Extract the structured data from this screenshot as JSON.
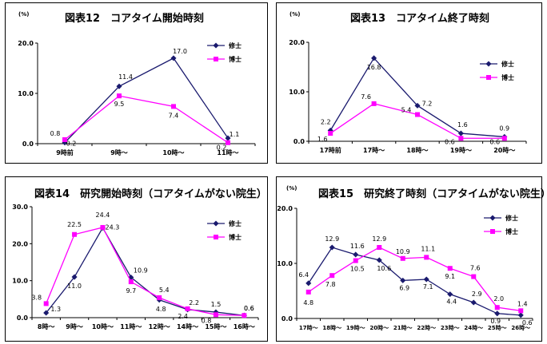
{
  "colors": {
    "m": "#1a1a6e",
    "d": "#ff00ff"
  },
  "chart_data": [
    {
      "type": "line",
      "title": "図表12　コアタイム開始時刻",
      "unit": "(%)",
      "categories": [
        "9時前",
        "9時～",
        "10時～",
        "11時～"
      ],
      "ylim": [
        0,
        20
      ],
      "yticks": [
        "0.0",
        "10.0",
        "20.0"
      ],
      "series": [
        {
          "name": "修士",
          "values": [
            0.2,
            11.4,
            17.0,
            1.1
          ]
        },
        {
          "name": "博士",
          "values": [
            0.8,
            9.5,
            7.4,
            0.2
          ]
        }
      ]
    },
    {
      "type": "line",
      "title": "図表13　コアタイム終了時刻",
      "unit": "(%)",
      "categories": [
        "17時前",
        "17時～",
        "18時～",
        "19時～",
        "20時～"
      ],
      "ylim": [
        0,
        20
      ],
      "yticks": [
        "0.0",
        "10.0",
        "20.0"
      ],
      "series": [
        {
          "name": "修士",
          "values": [
            2.2,
            16.8,
            7.2,
            1.6,
            0.9
          ]
        },
        {
          "name": "博士",
          "values": [
            1.6,
            7.6,
            5.4,
            0.6,
            0.6
          ]
        }
      ]
    },
    {
      "type": "line",
      "title": "図表14　研究開始時刻（コアタイムがない院生）",
      "unit": "",
      "categories": [
        "8時～",
        "9時～",
        "10時～",
        "11時～",
        "12時～",
        "14時～",
        "15時～",
        "16時～"
      ],
      "ylim": [
        0,
        30
      ],
      "yticks": [
        "0.0",
        "10.0",
        "20.0",
        "30.0"
      ],
      "series": [
        {
          "name": "修士",
          "values": [
            1.3,
            11.0,
            24.3,
            10.9,
            4.8,
            2.2,
            1.5,
            0.6
          ]
        },
        {
          "name": "博士",
          "values": [
            3.8,
            22.5,
            24.4,
            9.7,
            5.4,
            2.4,
            0.8,
            0.6
          ]
        }
      ]
    },
    {
      "type": "line",
      "title": "図表15　研究終了時刻（コアタイムがない院生）",
      "unit": "(%)",
      "categories": [
        "17時～",
        "18時～",
        "19時～",
        "20時～",
        "21時～",
        "22時～",
        "23時～",
        "24時～",
        "25時～",
        "26時～"
      ],
      "ylim": [
        0,
        20
      ],
      "yticks": [
        "0.0",
        "10.0",
        "20.0"
      ],
      "series": [
        {
          "name": "修士",
          "values": [
            6.4,
            12.9,
            11.6,
            10.6,
            6.9,
            7.1,
            4.4,
            2.9,
            0.9,
            0.6
          ]
        },
        {
          "name": "博士",
          "values": [
            4.8,
            7.8,
            10.5,
            12.9,
            10.9,
            11.1,
            9.1,
            7.6,
            2.0,
            1.4
          ]
        }
      ]
    }
  ]
}
